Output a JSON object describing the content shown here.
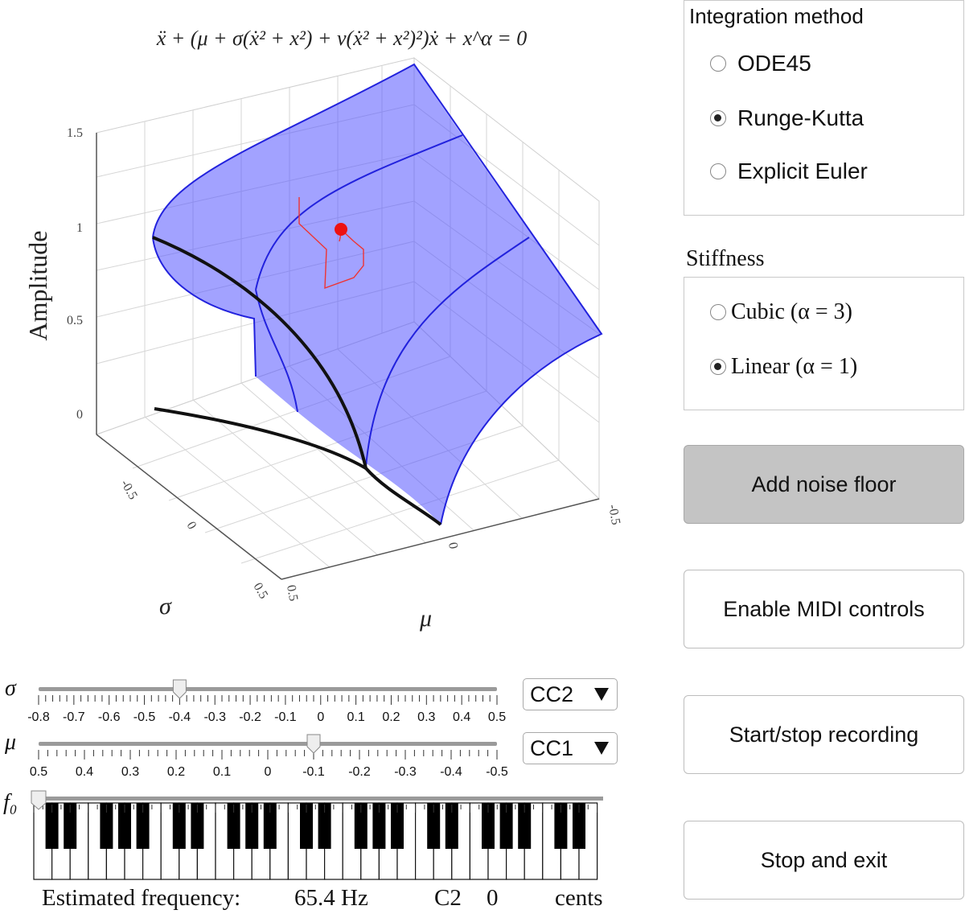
{
  "plot": {
    "equation": "ẍ + (μ + σ(ẋ² + x²) + ν(ẋ² + x²)²)ẋ + x^α = 0",
    "z_label": "Amplitude",
    "z_ticks": [
      "0",
      "0.5",
      "1",
      "1.5"
    ],
    "sigma_label": "σ",
    "sigma_ticks": [
      "-0.5",
      "0",
      "0.5"
    ],
    "mu_label": "μ",
    "mu_ticks": [
      "0.5",
      "0",
      "-0.5"
    ],
    "colors": {
      "surface": "#5555ff",
      "curve": "#2222dd",
      "bifurcation": "#111111",
      "trajectory": "#ee3333"
    }
  },
  "integration": {
    "title": "Integration method",
    "options": [
      {
        "label": "ODE45",
        "selected": false
      },
      {
        "label": "Runge-Kutta",
        "selected": true
      },
      {
        "label": "Explicit Euler",
        "selected": false
      }
    ]
  },
  "stiffness": {
    "title": "Stiffness",
    "options": [
      {
        "label": "Cubic (α = 3)",
        "selected": false
      },
      {
        "label": "Linear (α = 1)",
        "selected": true
      }
    ]
  },
  "buttons": {
    "noise": "Add noise floor",
    "midi": "Enable MIDI controls",
    "record": "Start/stop recording",
    "stop": "Stop and exit"
  },
  "sliders": {
    "sigma": {
      "label": "σ",
      "ticks": [
        "-0.8",
        "-0.7",
        "-0.6",
        "-0.5",
        "-0.4",
        "-0.3",
        "-0.2",
        "-0.1",
        "0",
        "0.1",
        "0.2",
        "0.3",
        "0.4",
        "0.5"
      ],
      "value": -0.4,
      "min": -0.8,
      "max": 0.5,
      "cc": "CC2"
    },
    "mu": {
      "label": "μ",
      "ticks": [
        "0.5",
        "0.4",
        "0.3",
        "0.2",
        "0.1",
        "0",
        "-0.1",
        "-0.2",
        "-0.3",
        "-0.4",
        "-0.5"
      ],
      "value": -0.1,
      "cc": "CC1"
    },
    "f0": {
      "label": "f₀"
    }
  },
  "status": {
    "label": "Estimated frequency:",
    "frequency": "65.4 Hz",
    "note": "C2",
    "cents_value": "0",
    "cents_label": "cents"
  }
}
